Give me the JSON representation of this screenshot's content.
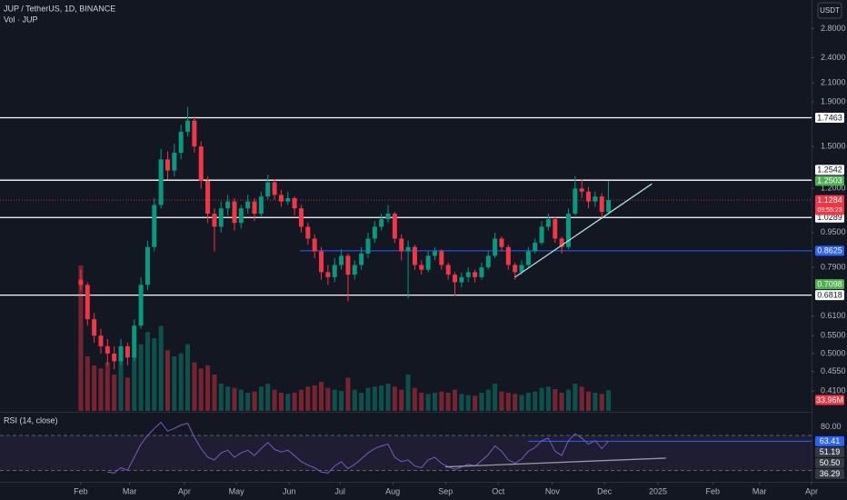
{
  "chart_data": {
    "type": "candlestick",
    "title": "JUP / TetherUS, 1D, BINANCE",
    "volume_title": "Vol · JUP",
    "rsi_title": "RSI (14, close)",
    "currency": "USDT",
    "log_scale": true,
    "up_color": "#089981",
    "down_color": "#f23645",
    "ylim": [
      0.369,
      3.26
    ],
    "yticks": [
      {
        "value": 2.8,
        "label": "2.8000"
      },
      {
        "value": 2.4,
        "label": "2.4000"
      },
      {
        "value": 2.1,
        "label": "2.1000"
      },
      {
        "value": 1.9,
        "label": "1.9000"
      },
      {
        "value": 1.5,
        "label": "1.5000"
      },
      {
        "value": 1.2,
        "label": "1.2000"
      },
      {
        "value": 0.95,
        "label": "0.9500"
      },
      {
        "value": 0.79,
        "label": "0.7900"
      },
      {
        "value": 0.61,
        "label": "0.6100"
      },
      {
        "value": 0.55,
        "label": "0.5500"
      },
      {
        "value": 0.5,
        "label": "0.5000"
      },
      {
        "value": 0.455,
        "label": "0.4550"
      },
      {
        "value": 0.41,
        "label": "0.4100"
      }
    ],
    "xlim": [
      -12.1,
      109.4
    ],
    "xticks": [
      {
        "value": 0,
        "label": "Feb"
      },
      {
        "value": 7.3,
        "label": "Mar"
      },
      {
        "value": 15.5,
        "label": "Apr"
      },
      {
        "value": 23.3,
        "label": "May"
      },
      {
        "value": 31.2,
        "label": "Jun"
      },
      {
        "value": 38.8,
        "label": "Jul"
      },
      {
        "value": 46.7,
        "label": "Aug"
      },
      {
        "value": 54.6,
        "label": "Sep"
      },
      {
        "value": 62.5,
        "label": "Oct"
      },
      {
        "value": 70.6,
        "label": "Nov"
      },
      {
        "value": 78.4,
        "label": "Dec"
      },
      {
        "value": 86.4,
        "label": "2025"
      },
      {
        "value": 94.6,
        "label": "Feb"
      },
      {
        "value": 101.6,
        "label": "Mar"
      },
      {
        "value": 109.4,
        "label": "Apr"
      }
    ],
    "candles": [
      [
        0.74,
        0.78,
        0.7,
        0.72
      ],
      [
        0.72,
        0.73,
        0.58,
        0.6
      ],
      [
        0.6,
        0.62,
        0.53,
        0.55
      ],
      [
        0.55,
        0.57,
        0.5,
        0.52
      ],
      [
        0.52,
        0.54,
        0.47,
        0.5
      ],
      [
        0.5,
        0.52,
        0.46,
        0.48
      ],
      [
        0.48,
        0.54,
        0.47,
        0.52
      ],
      [
        0.52,
        0.53,
        0.47,
        0.49
      ],
      [
        0.49,
        0.6,
        0.48,
        0.58
      ],
      [
        0.58,
        0.75,
        0.57,
        0.72
      ],
      [
        0.72,
        0.91,
        0.7,
        0.88
      ],
      [
        0.88,
        1.14,
        0.86,
        1.1
      ],
      [
        1.1,
        1.48,
        1.08,
        1.4
      ],
      [
        1.4,
        1.46,
        1.26,
        1.32
      ],
      [
        1.32,
        1.52,
        1.28,
        1.45
      ],
      [
        1.45,
        1.68,
        1.4,
        1.62
      ],
      [
        1.62,
        1.85,
        1.58,
        1.72
      ],
      [
        1.72,
        1.76,
        1.45,
        1.5
      ],
      [
        1.5,
        1.54,
        1.2,
        1.25
      ],
      [
        1.25,
        1.28,
        1.0,
        1.05
      ],
      [
        1.05,
        1.08,
        0.86,
        0.98
      ],
      [
        0.98,
        1.12,
        0.95,
        1.08
      ],
      [
        1.08,
        1.16,
        1.04,
        1.12
      ],
      [
        1.12,
        1.14,
        0.96,
        1.0
      ],
      [
        1.0,
        1.1,
        0.97,
        1.08
      ],
      [
        1.08,
        1.16,
        1.05,
        1.12
      ],
      [
        1.12,
        1.14,
        1.01,
        1.05
      ],
      [
        1.05,
        1.18,
        1.03,
        1.15
      ],
      [
        1.15,
        1.29,
        1.13,
        1.24
      ],
      [
        1.24,
        1.26,
        1.13,
        1.16
      ],
      [
        1.16,
        1.19,
        1.09,
        1.12
      ],
      [
        1.12,
        1.18,
        1.1,
        1.14
      ],
      [
        1.14,
        1.15,
        1.04,
        1.08
      ],
      [
        1.08,
        1.1,
        0.95,
        0.98
      ],
      [
        0.98,
        1.0,
        0.89,
        0.92
      ],
      [
        0.92,
        0.94,
        0.83,
        0.86
      ],
      [
        0.86,
        0.88,
        0.74,
        0.77
      ],
      [
        0.77,
        0.8,
        0.72,
        0.75
      ],
      [
        0.75,
        0.83,
        0.73,
        0.8
      ],
      [
        0.8,
        0.87,
        0.78,
        0.84
      ],
      [
        0.84,
        0.85,
        0.66,
        0.76
      ],
      [
        0.76,
        0.82,
        0.74,
        0.8
      ],
      [
        0.8,
        0.88,
        0.78,
        0.85
      ],
      [
        0.85,
        0.95,
        0.83,
        0.92
      ],
      [
        0.92,
        1.01,
        0.9,
        0.98
      ],
      [
        0.98,
        1.05,
        0.96,
        1.02
      ],
      [
        1.02,
        1.1,
        1.0,
        1.05
      ],
      [
        1.05,
        1.06,
        0.9,
        0.92
      ],
      [
        0.92,
        0.94,
        0.82,
        0.86
      ],
      [
        0.86,
        0.91,
        0.67,
        0.88
      ],
      [
        0.88,
        0.89,
        0.78,
        0.8
      ],
      [
        0.8,
        0.82,
        0.76,
        0.78
      ],
      [
        0.78,
        0.86,
        0.77,
        0.84
      ],
      [
        0.84,
        0.88,
        0.82,
        0.86
      ],
      [
        0.86,
        0.87,
        0.78,
        0.8
      ],
      [
        0.8,
        0.81,
        0.74,
        0.76
      ],
      [
        0.76,
        0.77,
        0.68,
        0.73
      ],
      [
        0.73,
        0.77,
        0.71,
        0.75
      ],
      [
        0.75,
        0.79,
        0.73,
        0.77
      ],
      [
        0.77,
        0.78,
        0.73,
        0.75
      ],
      [
        0.75,
        0.81,
        0.74,
        0.79
      ],
      [
        0.79,
        0.86,
        0.78,
        0.84
      ],
      [
        0.84,
        0.95,
        0.83,
        0.92
      ],
      [
        0.92,
        0.93,
        0.86,
        0.88
      ],
      [
        0.88,
        0.89,
        0.78,
        0.8
      ],
      [
        0.8,
        0.81,
        0.74,
        0.77
      ],
      [
        0.77,
        0.82,
        0.76,
        0.8
      ],
      [
        0.8,
        0.88,
        0.79,
        0.86
      ],
      [
        0.86,
        0.92,
        0.85,
        0.9
      ],
      [
        0.9,
        1.01,
        0.89,
        0.98
      ],
      [
        0.98,
        1.05,
        0.96,
        1.02
      ],
      [
        1.02,
        1.03,
        0.9,
        0.92
      ],
      [
        0.92,
        0.93,
        0.85,
        0.88
      ],
      [
        0.88,
        1.08,
        0.87,
        1.05
      ],
      [
        1.05,
        1.28,
        1.04,
        1.2
      ],
      [
        1.2,
        1.26,
        1.14,
        1.18
      ],
      [
        1.18,
        1.21,
        1.08,
        1.12
      ],
      [
        1.12,
        1.18,
        1.09,
        1.15
      ],
      [
        1.15,
        1.17,
        1.02,
        1.06
      ],
      [
        1.06,
        1.25,
        1.05,
        1.1284
      ]
    ],
    "volume": [
      240,
      90,
      75,
      70,
      80,
      60,
      85,
      55,
      90,
      110,
      130,
      120,
      140,
      100,
      90,
      95,
      110,
      80,
      70,
      75,
      60,
      45,
      40,
      38,
      35,
      30,
      32,
      40,
      45,
      35,
      30,
      28,
      30,
      35,
      40,
      42,
      48,
      38,
      35,
      33,
      55,
      35,
      30,
      38,
      40,
      42,
      45,
      40,
      35,
      60,
      38,
      30,
      28,
      30,
      32,
      30,
      35,
      28,
      26,
      25,
      30,
      35,
      45,
      32,
      30,
      28,
      26,
      30,
      32,
      38,
      40,
      36,
      30,
      35,
      45,
      40,
      32,
      30,
      28,
      33.96
    ],
    "volume_label": "33.96M",
    "volume_lim": [
      0,
      300
    ],
    "rsi": [
      null,
      null,
      null,
      null,
      28,
      27,
      33,
      30,
      45,
      60,
      70,
      78,
      85,
      75,
      78,
      82,
      84,
      68,
      55,
      45,
      42,
      50,
      53,
      45,
      50,
      53,
      47,
      55,
      62,
      54,
      51,
      53,
      47,
      40,
      36,
      33,
      28,
      27,
      35,
      40,
      32,
      37,
      43,
      50,
      55,
      58,
      60,
      45,
      40,
      42,
      35,
      33,
      42,
      45,
      38,
      34,
      31,
      34,
      37,
      35,
      41,
      48,
      58,
      52,
      42,
      38,
      43,
      52,
      56,
      64,
      67,
      52,
      47,
      64,
      72,
      67,
      60,
      64,
      55,
      63.41
    ],
    "rsi_lim": [
      20,
      95
    ],
    "rsi_ticks": [
      {
        "value": 80,
        "label": "80.00"
      }
    ],
    "rsi_bands": [
      70,
      30
    ],
    "rsi_labels": [
      {
        "value": 63.41,
        "label": "63.41",
        "color": "#2962ff"
      },
      {
        "value": 51.19,
        "label": "51.19",
        "color": "#363a45"
      },
      {
        "value": 50.5,
        "label": "50.50",
        "color": "#363a45"
      },
      {
        "value": 36.29,
        "label": "36.29",
        "color": "#363a45"
      }
    ],
    "rsi_line_from": 67,
    "rsi_trendline": {
      "from": [
        54.6,
        34
      ],
      "to": [
        87.6,
        44
      ],
      "color": "#9598a1"
    },
    "levels": [
      {
        "value": 1.7463,
        "label": "1.7463",
        "color": "#ffffff",
        "from": -12.1
      },
      {
        "value": 1.2542,
        "label": "1.2542",
        "color": "#ffffff",
        "from": -12.1
      },
      {
        "value": 1.0289,
        "label": "1.0289",
        "color": "#ffffff",
        "from": -12.1
      },
      {
        "value": 0.8625,
        "label": "0.8625",
        "color": "#2962ff",
        "from": 32.8
      },
      {
        "value": 0.6818,
        "label": "0.6818",
        "color": "#ffffff",
        "from": -12.1
      }
    ],
    "price_labels": [
      {
        "value": 1.2503,
        "label": "1.2503",
        "color": "#4caf50"
      },
      {
        "value": 0.7098,
        "label": "0.7098",
        "color": "#4caf50"
      }
    ],
    "trendlines": [
      {
        "from": [
          65,
          0.75
        ],
        "to": [
          85.5,
          1.23
        ],
        "color": "#b2dfdb"
      }
    ],
    "current_price": {
      "value": 1.1284,
      "label": "1.1284",
      "countdown": "09:55:23",
      "color": "#f23645"
    }
  }
}
